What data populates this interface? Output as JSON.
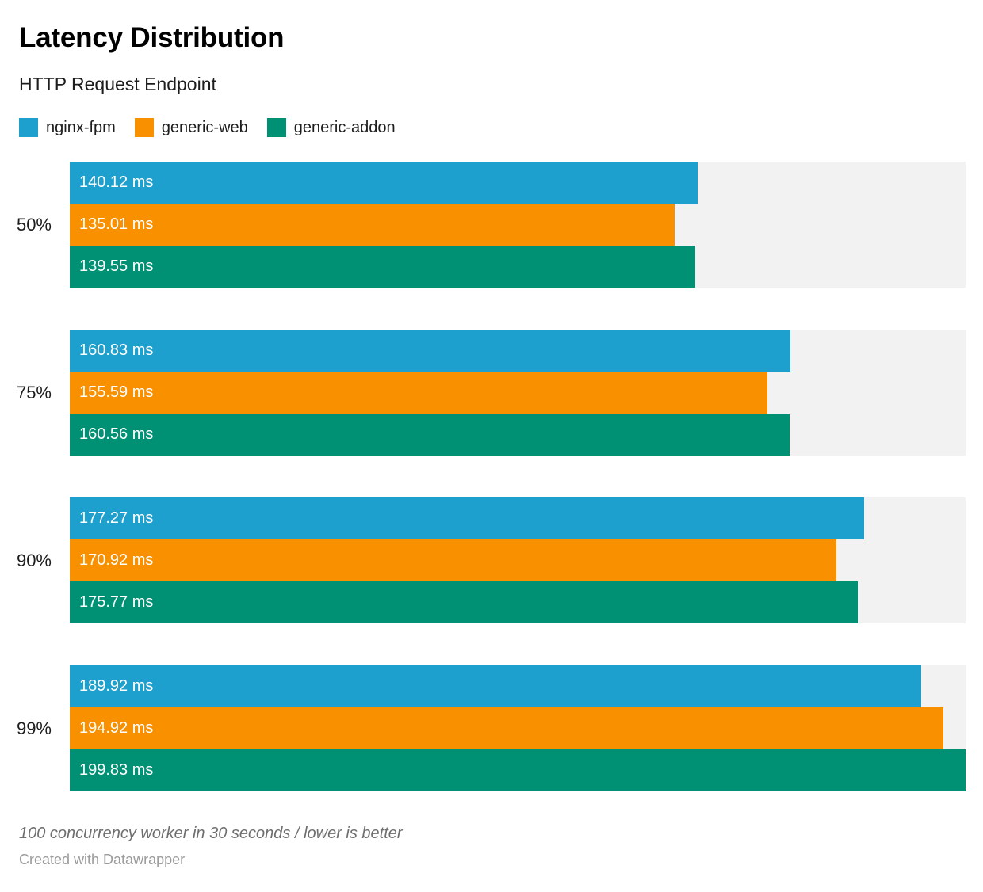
{
  "header": {
    "title": "Latency Distribution",
    "subtitle": "HTTP Request Endpoint"
  },
  "chart_data": {
    "type": "bar",
    "orientation": "horizontal",
    "title": "Latency Distribution",
    "subtitle": "HTTP Request Endpoint",
    "unit": "ms",
    "xlim": [
      0,
      199.83
    ],
    "grid": false,
    "legend_position": "top",
    "track_color": "#f2f2f2",
    "categories": [
      "50%",
      "75%",
      "90%",
      "99%"
    ],
    "series": [
      {
        "name": "nginx-fpm",
        "color": "#1da0ce",
        "values": [
          140.12,
          160.83,
          177.27,
          189.92
        ]
      },
      {
        "name": "generic-web",
        "color": "#f99000",
        "values": [
          135.01,
          155.59,
          170.92,
          194.92
        ]
      },
      {
        "name": "generic-addon",
        "color": "#009175",
        "values": [
          139.55,
          160.56,
          175.77,
          199.83
        ]
      }
    ],
    "groups": [
      {
        "category": "50%",
        "bars": [
          {
            "series": "nginx-fpm",
            "value": 140.12,
            "label": "140.12 ms"
          },
          {
            "series": "generic-web",
            "value": 135.01,
            "label": "135.01 ms"
          },
          {
            "series": "generic-addon",
            "value": 139.55,
            "label": "139.55 ms"
          }
        ]
      },
      {
        "category": "75%",
        "bars": [
          {
            "series": "nginx-fpm",
            "value": 160.83,
            "label": "160.83 ms"
          },
          {
            "series": "generic-web",
            "value": 155.59,
            "label": "155.59 ms"
          },
          {
            "series": "generic-addon",
            "value": 160.56,
            "label": "160.56 ms"
          }
        ]
      },
      {
        "category": "90%",
        "bars": [
          {
            "series": "nginx-fpm",
            "value": 177.27,
            "label": "177.27 ms"
          },
          {
            "series": "generic-web",
            "value": 170.92,
            "label": "170.92 ms"
          },
          {
            "series": "generic-addon",
            "value": 175.77,
            "label": "175.77 ms"
          }
        ]
      },
      {
        "category": "99%",
        "bars": [
          {
            "series": "nginx-fpm",
            "value": 189.92,
            "label": "189.92 ms"
          },
          {
            "series": "generic-web",
            "value": 194.92,
            "label": "194.92 ms"
          },
          {
            "series": "generic-addon",
            "value": 199.83,
            "label": "199.83 ms"
          }
        ]
      }
    ]
  },
  "footer": {
    "note": "100 concurrency worker in 30 seconds / lower is better",
    "attribution": "Created with Datawrapper"
  }
}
